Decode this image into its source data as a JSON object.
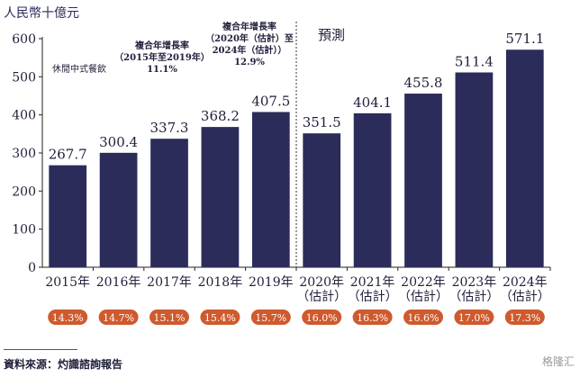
{
  "unit_label": "人民幣十億元",
  "segment_label": "休閒中式餐飲",
  "forecast_label": "預測",
  "cagr_hist": {
    "title": "複合年增長率",
    "period": "（2015年至2019年）",
    "value": "11.1%"
  },
  "cagr_fore": {
    "title": "複合年增長率",
    "period_line1": "（2020年（估計）至",
    "period_line2": "2024年（估計））",
    "value": "12.9%"
  },
  "source": "資料來源：灼識諮詢報告",
  "watermark": "格隆汇",
  "colors": {
    "bar": "#2b2c5a",
    "badge": "#cf5a2e",
    "badge_text": "#ffffff",
    "axis": "#222222"
  },
  "chart_data": {
    "type": "bar",
    "categories": [
      "2015年",
      "2016年",
      "2017年",
      "2018年",
      "2019年",
      "2020年",
      "2021年",
      "2022年",
      "2023年",
      "2024年"
    ],
    "category_sublabels": [
      "",
      "",
      "",
      "",
      "",
      "（估計）",
      "（估計）",
      "（估計）",
      "（估計）",
      "（估計）"
    ],
    "values": [
      267.7,
      300.4,
      337.3,
      368.2,
      407.5,
      351.5,
      404.1,
      455.8,
      511.4,
      571.1
    ],
    "value_labels": [
      "267.7",
      "300.4",
      "337.3",
      "368.2",
      "407.5",
      "351.5",
      "404.1",
      "455.8",
      "511.4",
      "571.1"
    ],
    "growth_rates": [
      "14.3%",
      "14.7%",
      "15.1%",
      "15.4%",
      "15.7%",
      "16.0%",
      "16.3%",
      "16.6%",
      "17.0%",
      "17.3%"
    ],
    "ylim": [
      0,
      600
    ],
    "yticks": [
      0,
      100,
      200,
      300,
      400,
      500,
      600
    ],
    "forecast_start_index": 5
  }
}
